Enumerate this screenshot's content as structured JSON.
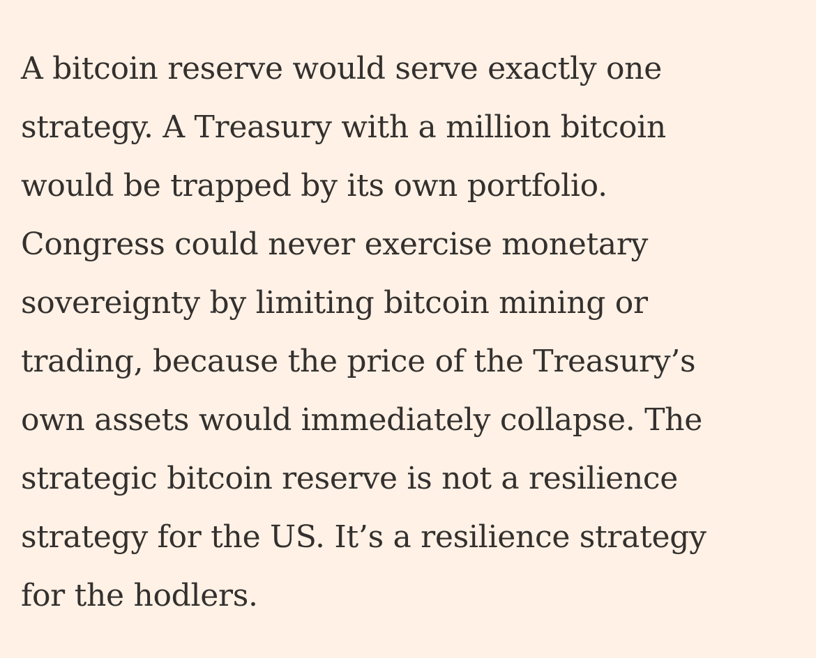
{
  "article": {
    "lines": [
      "A bitcoin reserve would serve exactly one",
      "strategy. A Treasury with a million bitcoin",
      "would be trapped by its own portfolio.",
      "Congress could never exercise monetary",
      "sovereignty by limiting bitcoin mining or",
      "trading, because the price of the Treasury’s",
      "own assets would immediately collapse. The",
      "strategic bitcoin reserve is not a resilience",
      "strategy for the US. It’s a resilience strategy",
      "for the hodlers."
    ]
  },
  "colors": {
    "background": "#FFF1E5",
    "text": "#33302E"
  }
}
